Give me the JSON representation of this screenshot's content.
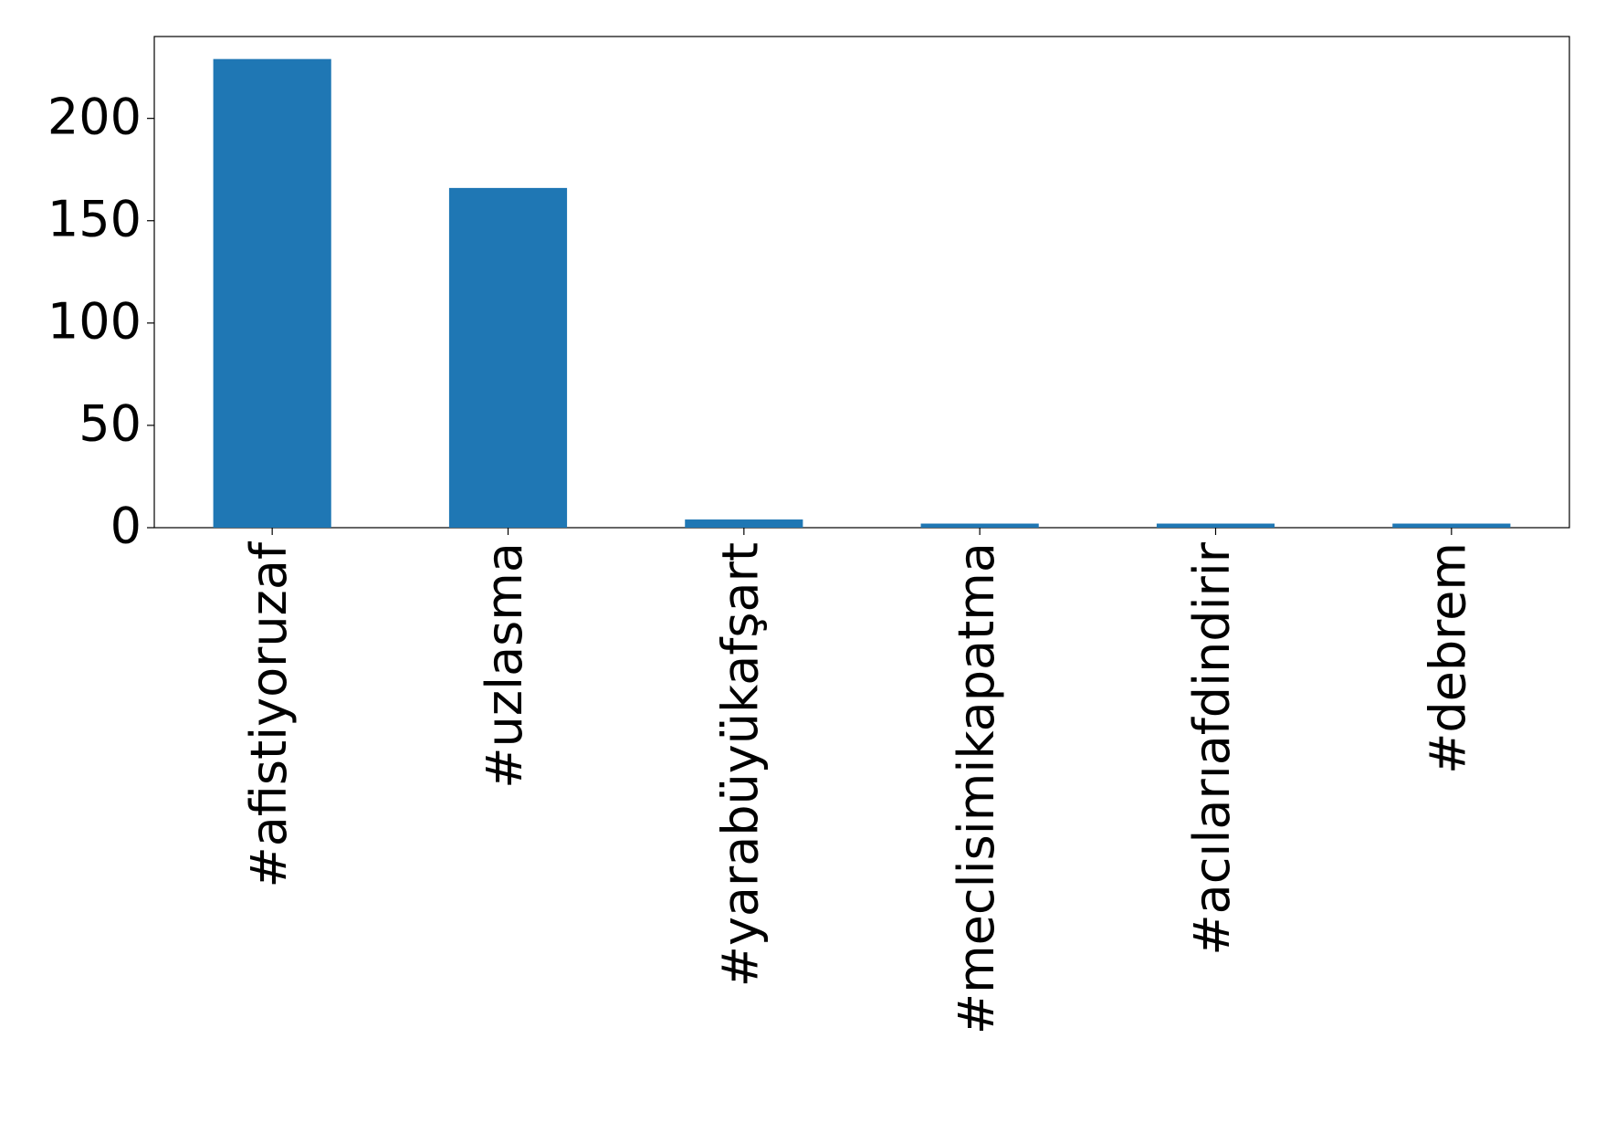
{
  "chart_data": {
    "type": "bar",
    "categories": [
      "#afistiyoruzaf",
      "#uzlasma",
      "#yarabüyükafşart",
      "#meclisimikapatma",
      "#acılarıafdindirir",
      "#debrem"
    ],
    "values": [
      229,
      166,
      4,
      2,
      2,
      2
    ],
    "color": "#1f77b4",
    "ylim": [
      0,
      240
    ],
    "yticks": [
      0,
      50,
      100,
      150,
      200
    ],
    "grid": false
  }
}
